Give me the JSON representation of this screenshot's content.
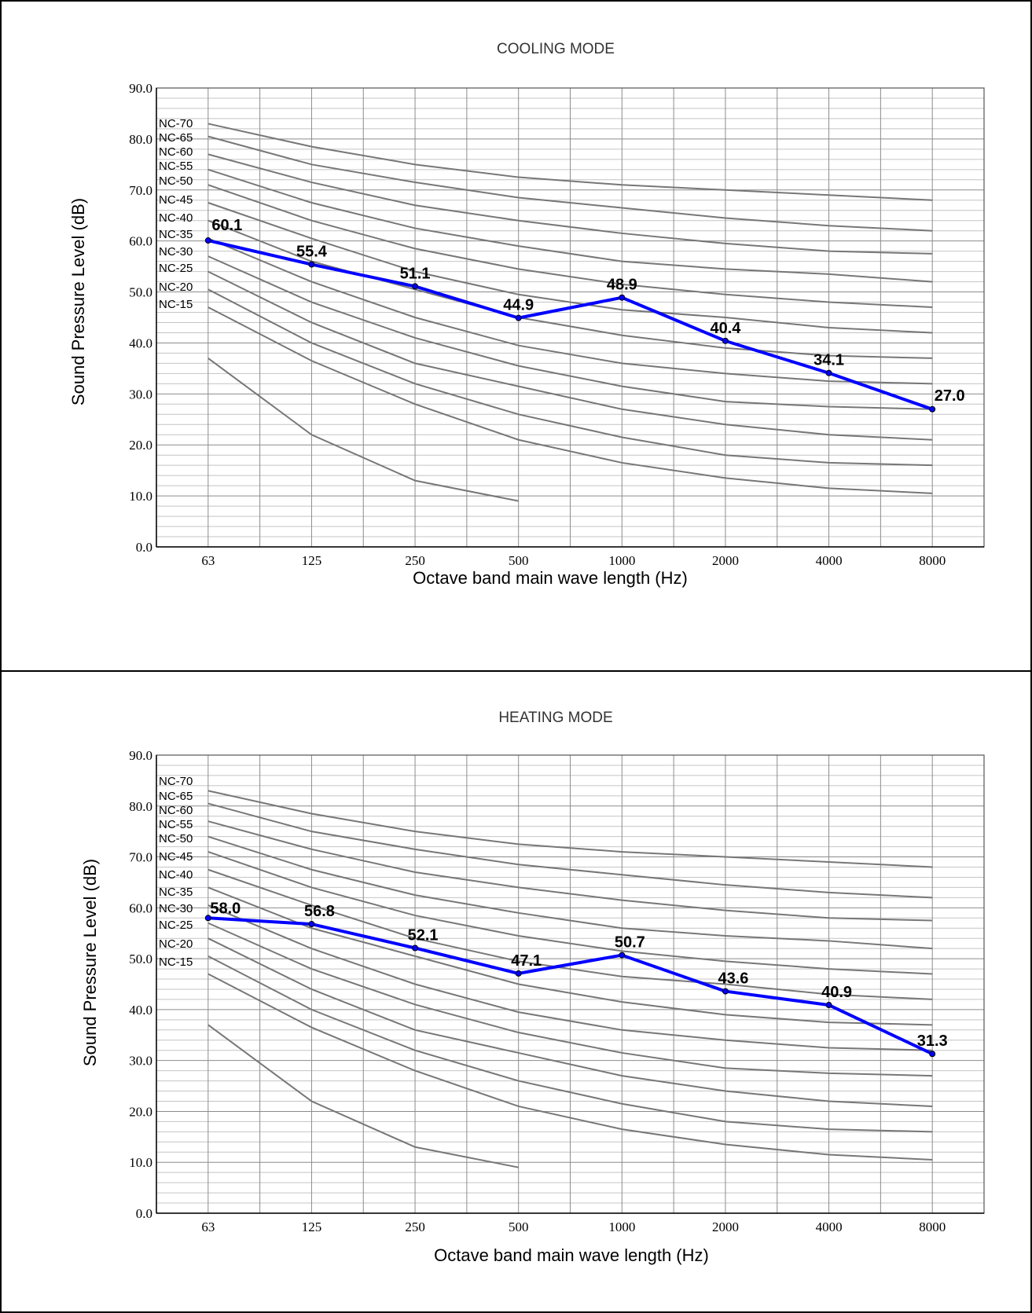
{
  "chart_data": [
    {
      "type": "line",
      "title": "COOLING MODE",
      "xlabel": "Octave band main wave length (Hz)",
      "ylabel": "Sound Pressure  Level (dB)",
      "categories": [
        "63",
        "125",
        "250",
        "500",
        "1000",
        "2000",
        "4000",
        "8000"
      ],
      "ylim": [
        0,
        90
      ],
      "yticks": [
        "0.0",
        "10.0",
        "20.0",
        "30.0",
        "40.0",
        "50.0",
        "60.0",
        "70.0",
        "80.0",
        "90.0"
      ],
      "grid": true,
      "series": [
        {
          "values": [
            60.1,
            55.4,
            51.1,
            44.9,
            48.9,
            40.4,
            34.1,
            27.0
          ],
          "labels": [
            "60.1",
            "55.4",
            "51.1",
            "44.9",
            "48.9",
            "40.4",
            "34.1",
            "27.0"
          ],
          "color": "#0000ff"
        }
      ]
    },
    {
      "type": "line",
      "title": "HEATING MODE",
      "xlabel": "Octave band main wave length (Hz)",
      "ylabel": "Sound Pressure Level (dB)",
      "categories": [
        "63",
        "125",
        "250",
        "500",
        "1000",
        "2000",
        "4000",
        "8000"
      ],
      "ylim": [
        0,
        90
      ],
      "yticks": [
        "0.0",
        "10.0",
        "20.0",
        "30.0",
        "40.0",
        "50.0",
        "60.0",
        "70.0",
        "80.0",
        "90.0"
      ],
      "grid": true,
      "series": [
        {
          "values": [
            58.0,
            56.8,
            52.1,
            47.1,
            50.7,
            43.6,
            40.9,
            31.3
          ],
          "labels": [
            "58.0",
            "56.8",
            "52.1",
            "47.1",
            "50.7",
            "43.6",
            "40.9",
            "31.3"
          ],
          "color": "#0000ff"
        }
      ]
    }
  ],
  "nc_curves": {
    "color": "#777777",
    "labels": [
      "NC-70",
      "NC-65",
      "NC-60",
      "NC-55",
      "NC-50",
      "NC-45",
      "NC-40",
      "NC-35",
      "NC-30",
      "NC-25",
      "NC-20",
      "NC-15"
    ],
    "curves": [
      [
        83,
        78.5,
        75,
        72.5,
        71,
        70,
        69,
        68
      ],
      [
        80.5,
        75,
        71.5,
        68.5,
        66.5,
        64.5,
        63,
        62
      ],
      [
        77,
        71.5,
        67,
        64,
        61.5,
        59.5,
        58,
        57.5
      ],
      [
        74,
        67.5,
        62.5,
        59,
        56,
        54.5,
        53.5,
        52
      ],
      [
        71,
        64,
        58.5,
        54.5,
        51.5,
        49.5,
        48,
        47
      ],
      [
        67.5,
        60.5,
        54,
        49.5,
        46.5,
        45,
        43,
        42
      ],
      [
        64,
        56,
        50.5,
        45,
        41.5,
        39,
        37.5,
        37
      ],
      [
        60.5,
        52,
        45,
        39.5,
        36,
        34,
        32.5,
        32
      ],
      [
        57,
        48,
        41,
        35.5,
        31.5,
        28.5,
        27.5,
        27
      ],
      [
        54,
        44,
        36,
        31.5,
        27,
        24,
        22,
        21
      ],
      [
        50.5,
        40,
        32,
        26,
        21.5,
        18,
        16.5,
        16
      ],
      [
        47,
        36.5,
        28,
        21,
        16.5,
        13.5,
        11.5,
        10.5
      ],
      [
        37,
        22,
        13,
        9
      ]
    ]
  }
}
